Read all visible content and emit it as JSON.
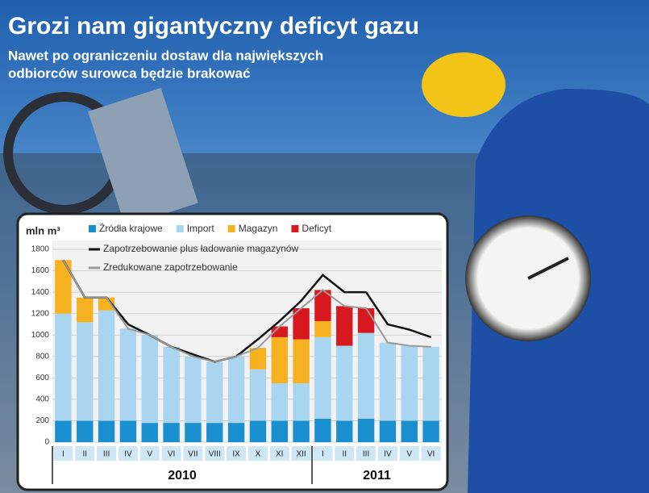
{
  "header": {
    "title": "Grozi nam gigantyczny deficyt gazu",
    "subtitle_lines": [
      "Nawet po ograniczeniu dostaw dla największych",
      "odbiorców surowca będzie brakować"
    ]
  },
  "chart_data": {
    "type": "bar",
    "stacked": true,
    "unit_label": "mln m³",
    "categories": [
      "I",
      "II",
      "III",
      "IV",
      "V",
      "VI",
      "VII",
      "VIII",
      "IX",
      "X",
      "XI",
      "XII",
      "I",
      "II",
      "III",
      "IV",
      "V",
      "VI"
    ],
    "x_groups": [
      {
        "label": "2010",
        "count": 12
      },
      {
        "label": "2011",
        "count": 6
      }
    ],
    "series": [
      {
        "name": "Źródła krajowe",
        "type": "bar",
        "color": "#1a8fd0",
        "values": [
          200,
          200,
          200,
          200,
          180,
          180,
          180,
          180,
          180,
          200,
          200,
          200,
          220,
          200,
          220,
          200,
          200,
          200
        ]
      },
      {
        "name": "Import",
        "type": "bar",
        "color": "#a9d5f0",
        "values": [
          1000,
          920,
          1030,
          860,
          820,
          710,
          620,
          570,
          620,
          480,
          350,
          350,
          760,
          700,
          800,
          730,
          700,
          690
        ]
      },
      {
        "name": "Magazyn",
        "type": "bar",
        "color": "#f5b120",
        "values": [
          500,
          230,
          120,
          0,
          0,
          0,
          0,
          0,
          0,
          200,
          430,
          410,
          150,
          0,
          0,
          0,
          0,
          0
        ]
      },
      {
        "name": "Deficyt",
        "type": "bar",
        "color": "#d7191f",
        "values": [
          0,
          0,
          0,
          0,
          0,
          0,
          0,
          0,
          0,
          0,
          100,
          290,
          290,
          370,
          230,
          0,
          0,
          0
        ]
      },
      {
        "name": "Zapotrzebowanie plus ładowanie magazynów",
        "type": "line",
        "color": "#111111",
        "values": [
          1700,
          1350,
          1350,
          1100,
          1000,
          890,
          820,
          750,
          800,
          960,
          1130,
          1320,
          1560,
          1400,
          1400,
          1100,
          1050,
          980
        ]
      },
      {
        "name": "Zredukowane zapotrzebowanie",
        "type": "line",
        "color": "#9a9a9a",
        "values": [
          1700,
          1350,
          1350,
          1060,
          1000,
          890,
          800,
          750,
          800,
          880,
          1080,
          1250,
          1420,
          1270,
          1250,
          930,
          900,
          890
        ]
      }
    ],
    "ylim": [
      0,
      1800
    ],
    "yticks": [
      0,
      200,
      400,
      600,
      800,
      1000,
      1200,
      1400,
      1600,
      1800
    ],
    "grid": true
  }
}
